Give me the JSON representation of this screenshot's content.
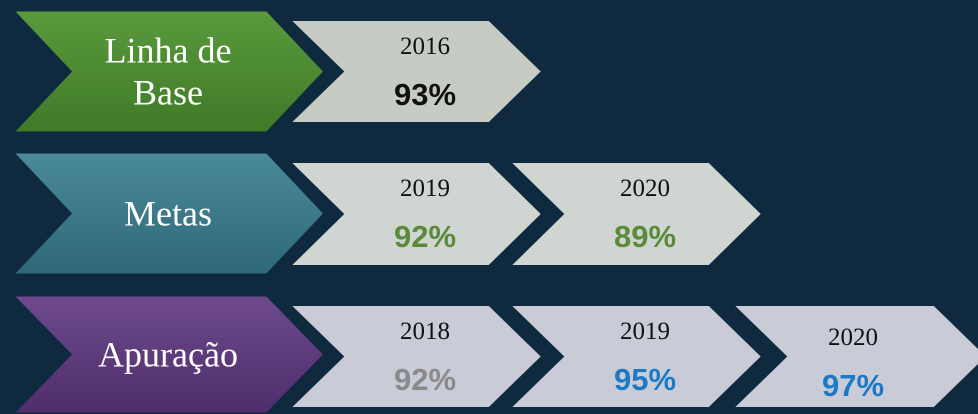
{
  "rows": [
    {
      "label": [
        "Linha de",
        "Base"
      ],
      "items": [
        {
          "year": "2016",
          "value": "93%"
        }
      ]
    },
    {
      "label": [
        "Metas"
      ],
      "items": [
        {
          "year": "2019",
          "value": "92%"
        },
        {
          "year": "2020",
          "value": "89%"
        }
      ]
    },
    {
      "label": [
        "Apuração"
      ],
      "items": [
        {
          "year": "2018",
          "value": "92%"
        },
        {
          "year": "2019",
          "value": "95%"
        },
        {
          "year": "2020",
          "value": "97%"
        }
      ]
    }
  ]
}
